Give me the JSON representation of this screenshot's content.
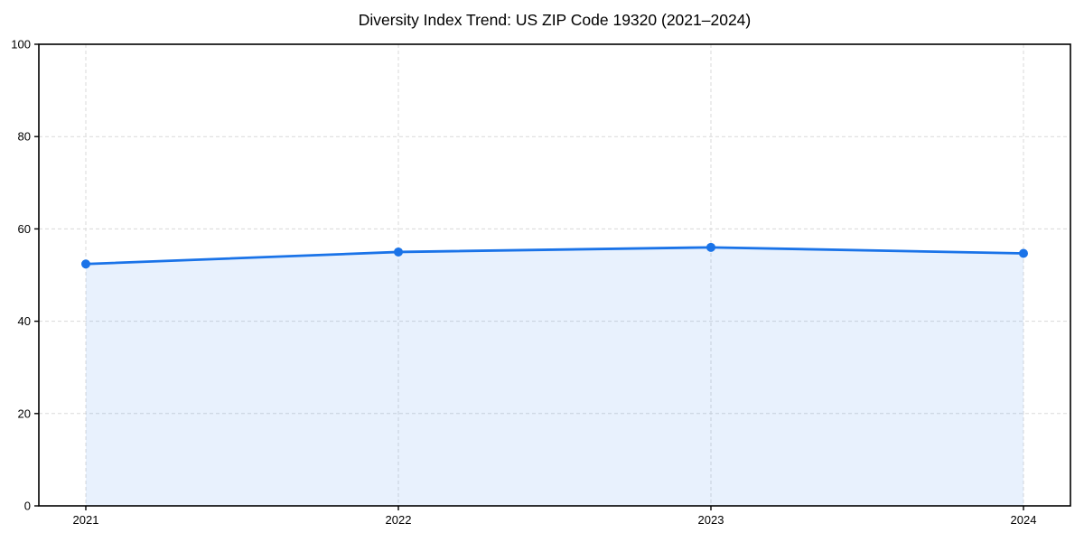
{
  "chart_data": {
    "type": "area",
    "title": "Diversity Index Trend: US ZIP Code 19320 (2021–2024)",
    "x": [
      "2021",
      "2022",
      "2023",
      "2024"
    ],
    "series": [
      {
        "name": "Diversity Index",
        "values": [
          52.4,
          55.0,
          56.0,
          54.7
        ]
      }
    ],
    "xlabel": "",
    "ylabel": "",
    "ylim": [
      0,
      100
    ],
    "yticks": [
      0,
      20,
      40,
      60,
      80,
      100
    ],
    "grid": true,
    "grid_style": "dashed",
    "legend_position": "none",
    "colors": {
      "line": "#1a73e8",
      "marker": "#1a73e8",
      "area_fill": "#1a73e8",
      "area_fill_opacity": 0.1,
      "grid": "#dadada",
      "spine": "#000000",
      "text": "#000000",
      "background": "#ffffff"
    },
    "style": {
      "line_width": 2.8,
      "marker_radius": 5,
      "marker_shape": "circle"
    }
  }
}
